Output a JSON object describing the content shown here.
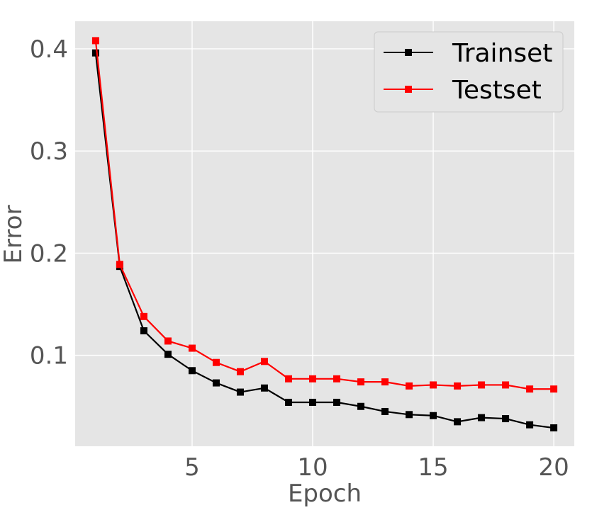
{
  "chart_data": {
    "type": "line",
    "title": "",
    "xlabel": "Epoch",
    "ylabel": "Error",
    "x": [
      1,
      2,
      3,
      4,
      5,
      6,
      7,
      8,
      9,
      10,
      11,
      12,
      13,
      14,
      15,
      16,
      17,
      18,
      19,
      20
    ],
    "xlim": [
      0.15,
      20.85
    ],
    "ylim": [
      0.011,
      0.427
    ],
    "xticks": [
      5,
      10,
      15,
      20
    ],
    "xtick_labels": [
      "5",
      "10",
      "15",
      "20"
    ],
    "yticks": [
      0.1,
      0.2,
      0.3,
      0.4
    ],
    "ytick_labels": [
      "0.1",
      "0.2",
      "0.3",
      "0.4"
    ],
    "grid": true,
    "legend_position": "top-right",
    "series": [
      {
        "name": "Trainset",
        "color": "#000000",
        "marker": "square",
        "values": [
          0.396,
          0.187,
          0.124,
          0.101,
          0.085,
          0.073,
          0.064,
          0.068,
          0.054,
          0.054,
          0.054,
          0.05,
          0.045,
          0.042,
          0.041,
          0.035,
          0.039,
          0.038,
          0.032,
          0.029
        ]
      },
      {
        "name": "Testset",
        "color": "#ff0000",
        "marker": "square",
        "values": [
          0.408,
          0.189,
          0.138,
          0.114,
          0.107,
          0.093,
          0.084,
          0.094,
          0.077,
          0.077,
          0.077,
          0.074,
          0.074,
          0.07,
          0.071,
          0.07,
          0.071,
          0.071,
          0.067,
          0.067
        ]
      }
    ],
    "colors": {
      "plot_background": "#e5e5e5",
      "grid": "#ffffff",
      "tick_text": "#555555"
    }
  }
}
